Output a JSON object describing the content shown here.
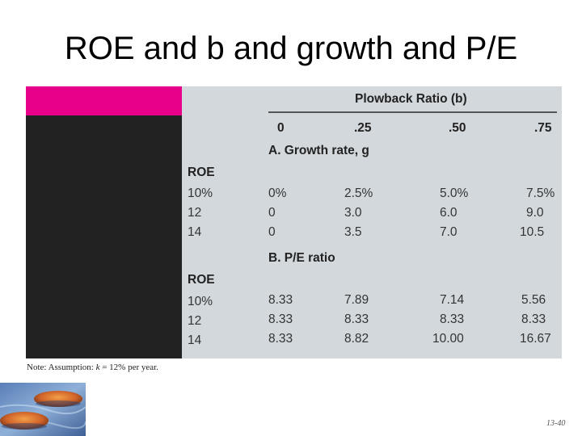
{
  "slide": {
    "title": "ROE and b and growth and P/E",
    "page_number": "13-40"
  },
  "table": {
    "header": "Plowback Ratio (b)",
    "columns": [
      "0",
      ".25",
      ".50",
      ".75"
    ],
    "section_a": {
      "title": "A. Growth rate, g",
      "row_header": "ROE",
      "rows": [
        {
          "roe": "10%",
          "values": [
            "0%",
            "2.5%",
            "5.0%",
            "7.5%"
          ]
        },
        {
          "roe": "12",
          "values": [
            "0",
            "3.0",
            "6.0",
            "9.0"
          ]
        },
        {
          "roe": "14",
          "values": [
            "0",
            "3.5",
            "7.0",
            "10.5"
          ]
        }
      ]
    },
    "section_b": {
      "title": "B. P/E ratio",
      "row_header": "ROE",
      "rows": [
        {
          "roe": "10%",
          "values": [
            "8.33",
            "7.89",
            "7.14",
            "5.56"
          ]
        },
        {
          "roe": "12",
          "values": [
            "8.33",
            "8.33",
            "8.33",
            "8.33"
          ]
        },
        {
          "roe": "14",
          "values": [
            "8.33",
            "8.82",
            "10.00",
            "16.67"
          ]
        }
      ]
    },
    "note": {
      "prefix": "Note: Assumption: ",
      "variable": "k",
      "suffix": " = 12% per year."
    }
  },
  "colors": {
    "accent_bar": "#e8008a",
    "dark_column": "#222222",
    "table_background": "#d3d8dc"
  },
  "decorations": {
    "logo_icon": "stones-on-water-image"
  }
}
